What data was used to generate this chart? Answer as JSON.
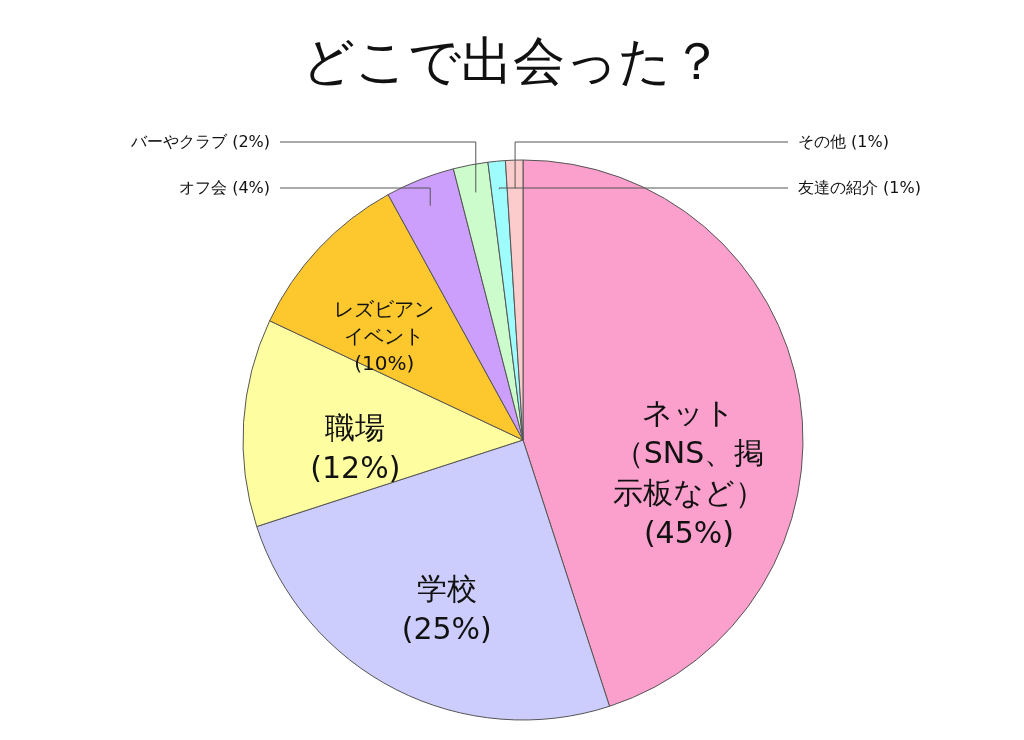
{
  "chart_data": {
    "type": "pie",
    "title": "どこで出会った？",
    "categories": [
      "ネット（SNS、掲示板など）",
      "学校",
      "職場",
      "レズビアンイベント",
      "オフ会",
      "バーやクラブ",
      "友達の紹介",
      "その他"
    ],
    "values": [
      45,
      25,
      12,
      10,
      4,
      2,
      1,
      1
    ],
    "value_labels": [
      "(45%)",
      "(25%)",
      "(12%)",
      "(10%)",
      "(4%)",
      "(2%)",
      "(1%)",
      "(1%)"
    ],
    "colors": [
      "#fba0cc",
      "#cccdfc",
      "#fefea0",
      "#fcc82e",
      "#cc9ffc",
      "#ccfccc",
      "#9ffcfc",
      "#fccccc"
    ],
    "legend": false
  }
}
